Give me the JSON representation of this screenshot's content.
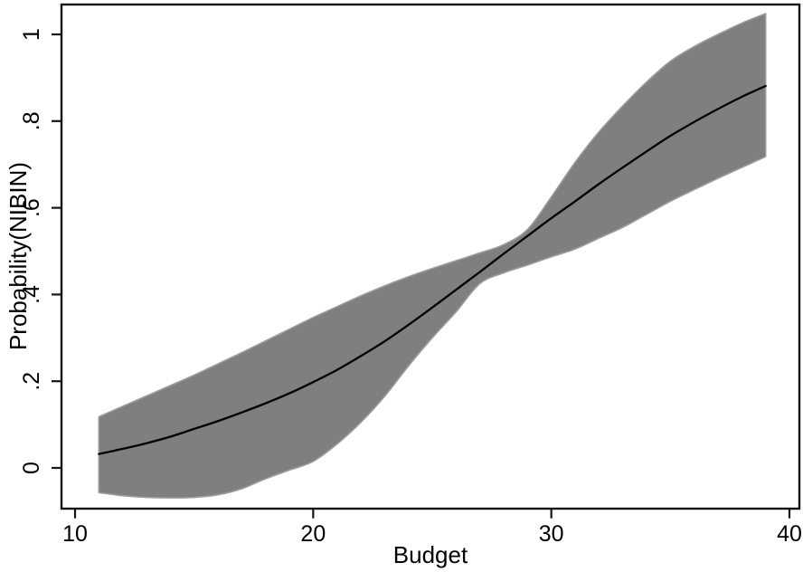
{
  "figure": {
    "background": "#ffffff",
    "border_color": "#141414",
    "tick_color": "#141414",
    "text_color": "#000000"
  },
  "chart_data": {
    "type": "area",
    "title": "",
    "xlabel": "Budget",
    "ylabel": "Probability(NIBIN)",
    "x_ticks": [
      10,
      20,
      30,
      40
    ],
    "y_ticks": [
      {
        "label": "0",
        "value": 0
      },
      {
        "label": ".2",
        "value": 0.2
      },
      {
        "label": ".4",
        "value": 0.4
      },
      {
        "label": ".6",
        "value": 0.6
      },
      {
        "label": ".8",
        "value": 0.8
      },
      {
        "label": "1",
        "value": 1
      }
    ],
    "xlim": [
      9.43,
      40.42
    ],
    "ylim": [
      -0.094,
      1.069
    ],
    "grid": false,
    "legend": "none",
    "x": [
      11,
      12,
      13,
      14,
      15,
      16,
      17,
      18,
      19,
      20,
      21,
      22,
      23,
      24,
      25,
      26,
      27,
      28,
      29,
      30,
      31,
      32,
      33,
      34,
      35,
      36,
      37,
      38,
      39
    ],
    "series": [
      {
        "name": "predicted probability (fit line)",
        "type": "line",
        "color": "#000000",
        "values": [
          0.032,
          0.044,
          0.057,
          0.072,
          0.09,
          0.108,
          0.128,
          0.149,
          0.172,
          0.198,
          0.226,
          0.258,
          0.292,
          0.33,
          0.37,
          0.411,
          0.452,
          0.494,
          0.535,
          0.576,
          0.615,
          0.655,
          0.693,
          0.73,
          0.766,
          0.798,
          0.828,
          0.856,
          0.881
        ]
      },
      {
        "name": "confidence interval upper bound",
        "type": "band-upper",
        "color": "#7f7f7f",
        "edge_color": "#9c9c9c",
        "values": [
          0.118,
          0.142,
          0.166,
          0.19,
          0.214,
          0.24,
          0.266,
          0.293,
          0.32,
          0.347,
          0.372,
          0.397,
          0.42,
          0.441,
          0.46,
          0.478,
          0.496,
          0.515,
          0.55,
          0.625,
          0.705,
          0.775,
          0.835,
          0.89,
          0.938,
          0.972,
          1.0,
          1.026,
          1.048
        ]
      },
      {
        "name": "confidence interval lower bound",
        "type": "band-lower",
        "color": "#7f7f7f",
        "edge_color": "#9c9c9c",
        "values": [
          -0.057,
          -0.064,
          -0.068,
          -0.069,
          -0.068,
          -0.062,
          -0.048,
          -0.025,
          -0.005,
          0.015,
          0.055,
          0.105,
          0.165,
          0.235,
          0.3,
          0.36,
          0.425,
          0.45,
          0.468,
          0.487,
          0.505,
          0.53,
          0.555,
          0.585,
          0.615,
          0.642,
          0.668,
          0.693,
          0.718
        ]
      }
    ]
  }
}
